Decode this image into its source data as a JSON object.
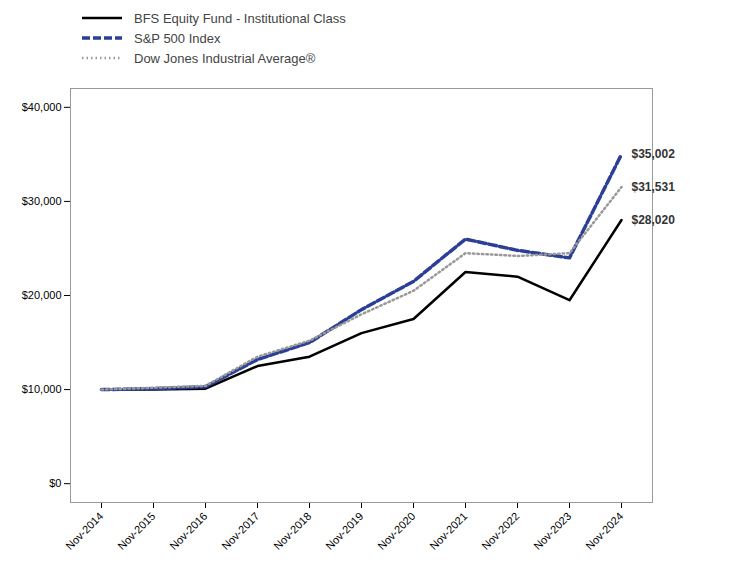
{
  "chart_data": {
    "type": "line",
    "categories": [
      "Nov-2014",
      "Nov-2015",
      "Nov-2016",
      "Nov-2017",
      "Nov-2018",
      "Nov-2019",
      "Nov-2020",
      "Nov-2021",
      "Nov-2022",
      "Nov-2023",
      "Nov-2024"
    ],
    "series": [
      {
        "name": "BFS Equity Fund - Institutional Class",
        "color": "#000000",
        "line_style": "solid",
        "values": [
          10000,
          10000,
          10100,
          12500,
          13500,
          16000,
          17500,
          22500,
          22000,
          19500,
          28020
        ]
      },
      {
        "name": "S&P 500 Index",
        "color": "#2b3f96",
        "line_style": "dashed",
        "values": [
          10000,
          10100,
          10300,
          13200,
          15000,
          18500,
          21500,
          26000,
          24800,
          24000,
          35002
        ]
      },
      {
        "name": "Dow Jones Industrial Average®",
        "color": "#999999",
        "line_style": "dotted",
        "values": [
          10000,
          10200,
          10400,
          13500,
          15200,
          18000,
          20500,
          24500,
          24200,
          24500,
          31531
        ]
      }
    ],
    "annotations": [
      {
        "text": "$35,002",
        "x": "Nov-2024",
        "y": 35002
      },
      {
        "text": "$31,531",
        "x": "Nov-2024",
        "y": 31531
      },
      {
        "text": "$28,020",
        "x": "Nov-2024",
        "y": 28020
      }
    ],
    "ylim": [
      -2000,
      42000
    ],
    "yticks": [
      {
        "value": 0,
        "label": "$0"
      },
      {
        "value": 10000,
        "label": "$10,000"
      },
      {
        "value": 20000,
        "label": "$20,000"
      },
      {
        "value": 30000,
        "label": "$30,000"
      },
      {
        "value": 40000,
        "label": "$40,000"
      }
    ],
    "grid": false,
    "legend": "top"
  }
}
